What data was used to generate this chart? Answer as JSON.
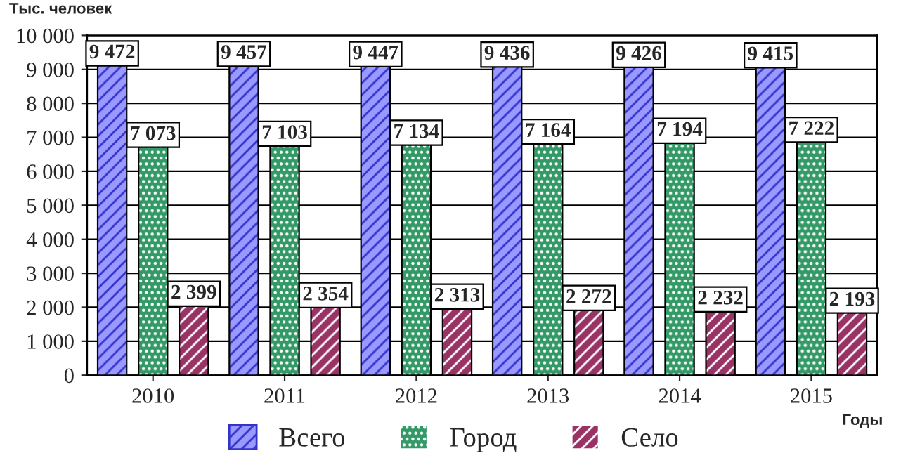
{
  "chart_data": {
    "type": "bar",
    "ylabel": "Тыс. человек",
    "xlabel": "Годы",
    "categories": [
      "2010",
      "2011",
      "2012",
      "2013",
      "2014",
      "2015"
    ],
    "series": [
      {
        "name": "Всего",
        "color": "#9999ff",
        "values": [
          9472,
          9457,
          9447,
          9436,
          9426,
          9415
        ],
        "value_labels": [
          "9 472",
          "9 457",
          "9 447",
          "9 436",
          "9 426",
          "9 415"
        ]
      },
      {
        "name": "Город",
        "color": "#339966",
        "values": [
          7073,
          7103,
          7134,
          7164,
          7194,
          7222
        ],
        "value_labels": [
          "7 073",
          "7 103",
          "7 134",
          "7 164",
          "7 194",
          "7 222"
        ]
      },
      {
        "name": "Село",
        "color": "#993366",
        "values": [
          2399,
          2354,
          2313,
          2272,
          2232,
          2193
        ],
        "value_labels": [
          "2 399",
          "2 354",
          "2 313",
          "2 272",
          "2 232",
          "2 193"
        ]
      }
    ],
    "ylim": [
      0,
      10000
    ],
    "yticks": [
      0,
      {
        "value": 1000,
        "label": "1 000"
      },
      {
        "value": 2000,
        "label": "2 000"
      },
      {
        "value": 3000,
        "label": "3 000"
      },
      {
        "value": 4000,
        "label": "4 000"
      },
      {
        "value": 5000,
        "label": "5 000"
      },
      {
        "value": 6000,
        "label": "6 000"
      },
      {
        "value": 7000,
        "label": "7 000"
      },
      {
        "value": 8000,
        "label": "8 000"
      },
      {
        "value": 9000,
        "label": "9 000"
      },
      {
        "value": 10000,
        "label": "10 000"
      }
    ],
    "grid": "y",
    "legend": "bottom"
  }
}
